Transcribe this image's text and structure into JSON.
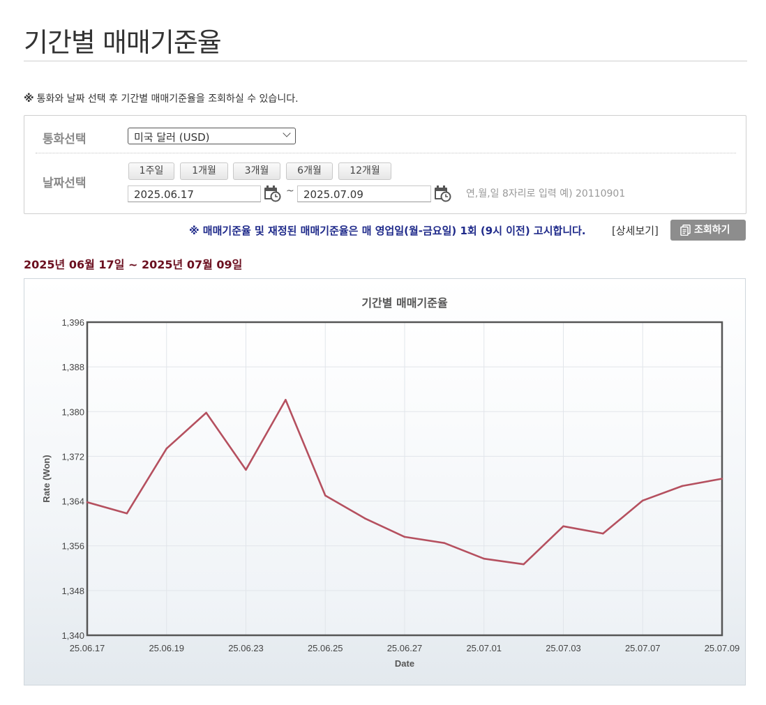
{
  "page": {
    "title": "기간별 매매기준율",
    "notice": "통화와 날짜 선택 후 기간별 매매기준율을 조회하실 수 있습니다.",
    "notice_mark": "※"
  },
  "search": {
    "currency_label": "통화선택",
    "currency_value": "미국 달러 (USD)",
    "date_label": "날짜선택",
    "period_buttons": [
      "1주일",
      "1개월",
      "3개월",
      "6개월",
      "12개월"
    ],
    "start_date": "2025.06.17",
    "end_date": "2025.07.09",
    "tilde": "~",
    "date_hint": "연,월,일 8자리로 입력 예) 20110901"
  },
  "notice2": "※ 매매기준율 및 재정된 매매기준율은 매 영업일(월-금요일) 1회 (9시 이전) 고시합니다.",
  "detail_link": "[상세보기]",
  "query_button": "조회하기",
  "range": {
    "start_year": "2025",
    "start_month": "06",
    "start_day": "17",
    "end_year": "2025",
    "end_month": "07",
    "end_day": "09",
    "year_unit": "년",
    "month_unit": "월",
    "day_unit": "일",
    "sep": "~"
  },
  "colors": {
    "line": "#b5505f",
    "notice2": "#1f2a8a",
    "range_title": "#6b0f1f",
    "query_button": "#8d8d8d"
  },
  "chart_data": {
    "type": "line",
    "title": "기간별 매매기준율",
    "xlabel": "Date",
    "ylabel": "Rate (Won)",
    "ylim": [
      1340,
      1396
    ],
    "yticks": [
      "1,340",
      "1,348",
      "1,356",
      "1,364",
      "1,372",
      "1,380",
      "1,388",
      "1,396"
    ],
    "xticks": [
      "25.06.17",
      "25.06.19",
      "25.06.23",
      "25.06.25",
      "25.06.27",
      "25.07.01",
      "25.07.03",
      "25.07.07",
      "25.07.09"
    ],
    "grid": true,
    "x": [
      "25.06.17",
      "25.06.18",
      "25.06.19",
      "25.06.20",
      "25.06.23",
      "25.06.24",
      "25.06.25",
      "25.06.26",
      "25.06.27",
      "25.06.30",
      "25.07.01",
      "25.07.02",
      "25.07.03",
      "25.07.04",
      "25.07.07",
      "25.07.08",
      "25.07.09"
    ],
    "series": [
      {
        "values": [
          1363.8,
          1361.8,
          1373.4,
          1379.8,
          1369.6,
          1382.1,
          1365.0,
          1360.9,
          1357.6,
          1356.5,
          1353.7,
          1352.7,
          1359.5,
          1358.2,
          1364.1,
          1366.7,
          1368.0
        ]
      }
    ]
  }
}
